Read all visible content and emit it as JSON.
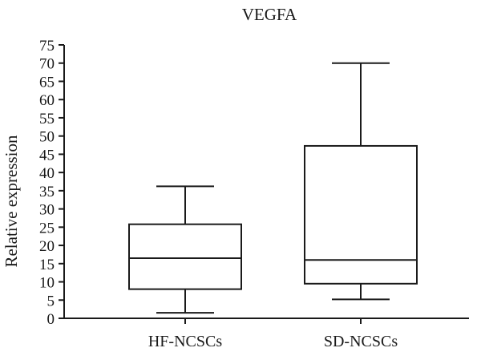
{
  "chart_data": {
    "type": "box",
    "title": "VEGFA",
    "xlabel": "",
    "ylabel": "Relative expression",
    "ylim": [
      0,
      75
    ],
    "yticks": [
      0,
      5,
      10,
      15,
      20,
      25,
      30,
      35,
      40,
      45,
      50,
      55,
      60,
      65,
      70,
      75
    ],
    "categories": [
      "HF-NCSCs",
      "SD-NCSCs"
    ],
    "boxes": [
      {
        "category": "HF-NCSCs",
        "min": 1.5,
        "q1": 8,
        "median": 16.5,
        "q3": 25.8,
        "max": 36.2
      },
      {
        "category": "SD-NCSCs",
        "min": 5.2,
        "q1": 9.5,
        "median": 16,
        "q3": 47.3,
        "max": 70
      }
    ],
    "grid": false,
    "legend": "none",
    "colors": {
      "stroke": "#1a1a1a",
      "box_fill": "#ffffff"
    }
  }
}
